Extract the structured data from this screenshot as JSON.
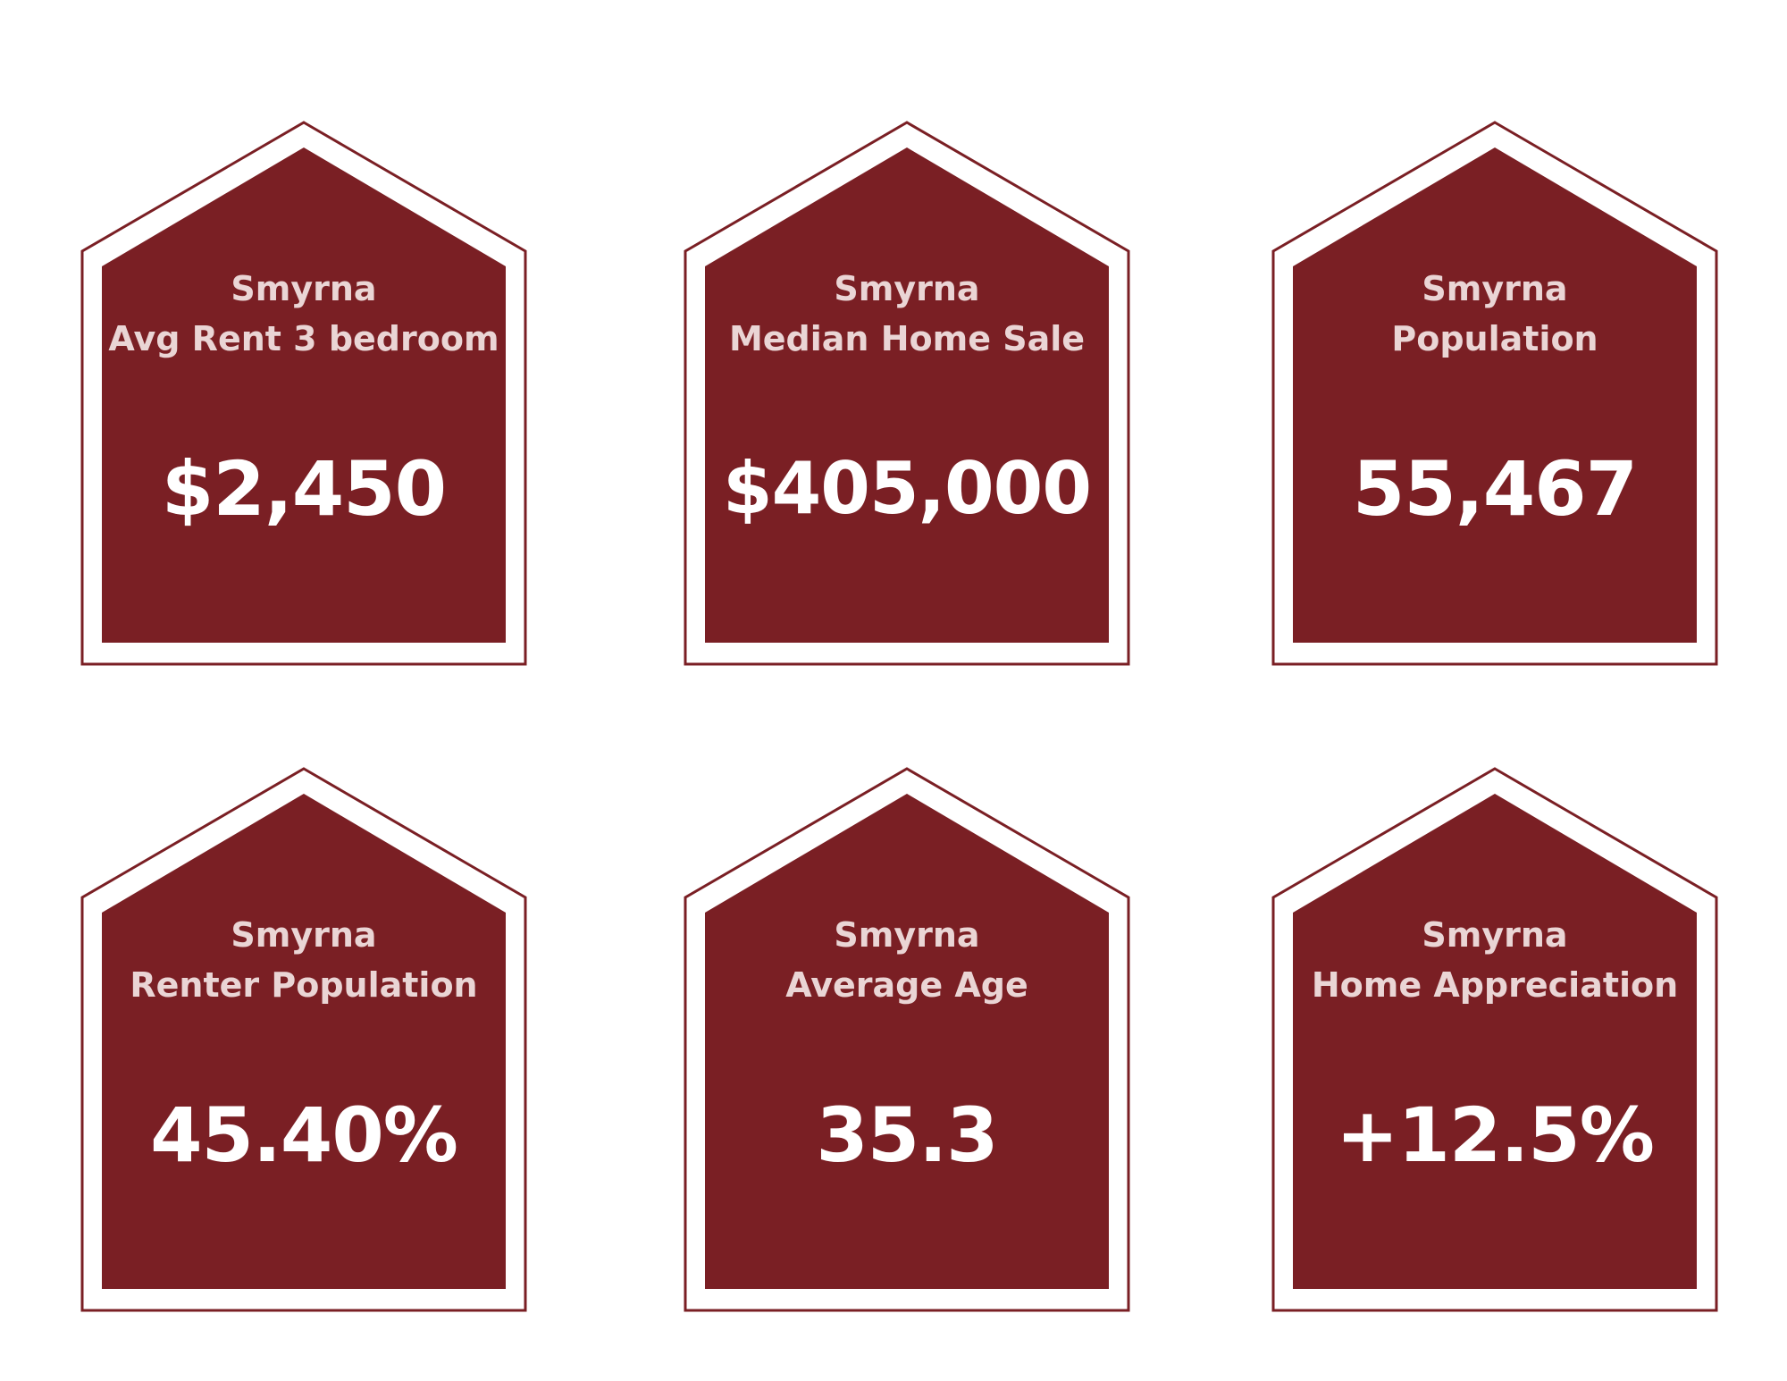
{
  "colors": {
    "brand": "#7a1f24",
    "label_text": "#ead5d5",
    "value_text": "#ffffff",
    "background": "#ffffff"
  },
  "cards": [
    {
      "city": "Smyrna",
      "metric": "Avg Rent 3 bedroom",
      "value": "$2,450"
    },
    {
      "city": "Smyrna",
      "metric": "Median Home Sale",
      "value": "$405,000"
    },
    {
      "city": "Smyrna",
      "metric": "Population",
      "value": "55,467"
    },
    {
      "city": "Smyrna",
      "metric": "Renter Population",
      "value": "45.40%"
    },
    {
      "city": "Smyrna",
      "metric": "Average Age",
      "value": "35.3"
    },
    {
      "city": "Smyrna",
      "metric": "Home Appreciation",
      "value": "+12.5%"
    }
  ]
}
